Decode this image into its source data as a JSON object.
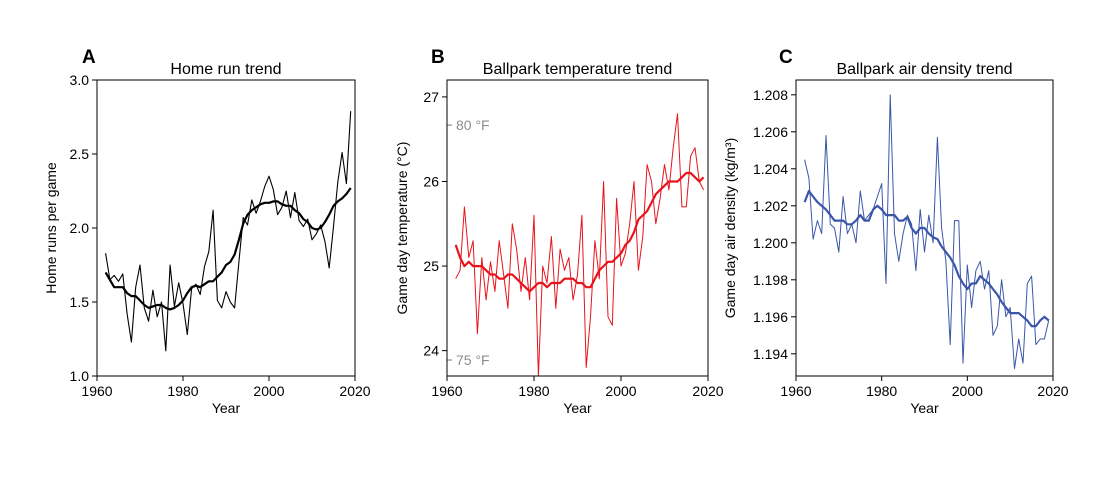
{
  "chart_data": [
    {
      "type": "line",
      "panel_letter": "A",
      "title": "Home run trend",
      "xlabel": "Year",
      "ylabel": "Home runs per game",
      "xlim": [
        1960,
        2020
      ],
      "ylim": [
        1.0,
        3.0
      ],
      "xticks": [
        "1960",
        "1980",
        "2000",
        "2020"
      ],
      "yticks": [
        "1.0",
        "1.5",
        "2.0",
        "2.5",
        "3.0"
      ],
      "ytick_values": [
        1.0,
        1.5,
        2.0,
        2.5,
        3.0
      ],
      "color": "#000000",
      "grid": false,
      "x": [
        1962,
        1963,
        1964,
        1965,
        1966,
        1967,
        1968,
        1969,
        1970,
        1971,
        1972,
        1973,
        1974,
        1975,
        1976,
        1977,
        1978,
        1979,
        1980,
        1981,
        1982,
        1983,
        1984,
        1985,
        1986,
        1987,
        1988,
        1989,
        1990,
        1991,
        1992,
        1993,
        1994,
        1995,
        1996,
        1997,
        1998,
        1999,
        2000,
        2001,
        2002,
        2003,
        2004,
        2005,
        2006,
        2007,
        2008,
        2009,
        2010,
        2011,
        2012,
        2013,
        2014,
        2015,
        2016,
        2017,
        2018,
        2019
      ],
      "series": [
        {
          "values": [
            1.83,
            1.65,
            1.68,
            1.64,
            1.69,
            1.42,
            1.23,
            1.6,
            1.75,
            1.46,
            1.37,
            1.58,
            1.4,
            1.5,
            1.17,
            1.75,
            1.47,
            1.63,
            1.49,
            1.28,
            1.59,
            1.62,
            1.55,
            1.74,
            1.84,
            2.12,
            1.51,
            1.46,
            1.57,
            1.5,
            1.46,
            1.77,
            2.07,
            2.02,
            2.19,
            2.1,
            2.18,
            2.28,
            2.35,
            2.26,
            2.09,
            2.14,
            2.25,
            2.07,
            2.24,
            2.05,
            2.01,
            2.06,
            1.92,
            1.96,
            2.02,
            1.91,
            1.73,
            2.01,
            2.31,
            2.51,
            2.3,
            2.79
          ]
        },
        {
          "values": [
            1.7,
            1.65,
            1.6,
            1.6,
            1.6,
            1.56,
            1.54,
            1.54,
            1.51,
            1.48,
            1.46,
            1.47,
            1.48,
            1.48,
            1.46,
            1.45,
            1.46,
            1.48,
            1.51,
            1.56,
            1.6,
            1.61,
            1.6,
            1.62,
            1.64,
            1.64,
            1.67,
            1.7,
            1.75,
            1.77,
            1.82,
            1.92,
            2.03,
            2.09,
            2.12,
            2.14,
            2.16,
            2.17,
            2.17,
            2.18,
            2.18,
            2.16,
            2.15,
            2.15,
            2.12,
            2.1,
            2.06,
            2.04,
            2.0,
            1.99,
            2.0,
            2.04,
            2.09,
            2.15,
            2.18,
            2.2,
            2.23,
            2.27
          ]
        }
      ]
    },
    {
      "type": "line",
      "panel_letter": "B",
      "title": "Ballpark temperature trend",
      "xlabel": "Year",
      "ylabel": "Game day temperature (°C)",
      "xlim": [
        1960,
        2020
      ],
      "ylim": [
        23.7,
        27.2
      ],
      "xticks": [
        "1960",
        "1980",
        "2000",
        "2020"
      ],
      "yticks": [
        "24",
        "25",
        "26",
        "27"
      ],
      "ytick_values": [
        24,
        25,
        26,
        27
      ],
      "annotations": [
        {
          "text": "80 °F",
          "y": 26.667
        },
        {
          "text": "75 °F",
          "y": 23.889
        }
      ],
      "annotation_color": "#8c8c8c",
      "color": "#e8141b",
      "grid": false,
      "x": [
        1962,
        1963,
        1964,
        1965,
        1966,
        1967,
        1968,
        1969,
        1970,
        1971,
        1972,
        1973,
        1974,
        1975,
        1976,
        1977,
        1978,
        1979,
        1980,
        1981,
        1982,
        1983,
        1984,
        1985,
        1986,
        1987,
        1988,
        1989,
        1990,
        1991,
        1992,
        1993,
        1994,
        1995,
        1996,
        1997,
        1998,
        1999,
        2000,
        2001,
        2002,
        2003,
        2004,
        2005,
        2006,
        2007,
        2008,
        2009,
        2010,
        2011,
        2012,
        2013,
        2014,
        2015,
        2016,
        2017,
        2018,
        2019
      ],
      "series": [
        {
          "values": [
            24.85,
            24.95,
            25.7,
            25.1,
            25.3,
            24.2,
            25.1,
            24.6,
            25.05,
            24.7,
            25.3,
            24.9,
            24.5,
            25.5,
            25.2,
            24.7,
            25.1,
            24.6,
            25.6,
            23.7,
            25.0,
            24.8,
            25.35,
            24.5,
            25.2,
            24.95,
            25.1,
            24.6,
            24.9,
            25.6,
            23.8,
            24.4,
            25.3,
            24.85,
            26.0,
            24.4,
            24.3,
            25.8,
            25.0,
            25.15,
            25.5,
            26.0,
            24.95,
            25.35,
            26.2,
            26.0,
            25.5,
            25.8,
            26.2,
            25.9,
            26.4,
            26.8,
            25.7,
            25.7,
            26.3,
            26.4,
            26.0,
            25.9
          ]
        },
        {
          "values": [
            25.25,
            25.1,
            25.0,
            25.05,
            25.0,
            25.0,
            25.0,
            24.95,
            24.9,
            24.9,
            24.85,
            24.85,
            24.9,
            24.9,
            24.85,
            24.8,
            24.75,
            24.7,
            24.75,
            24.8,
            24.8,
            24.75,
            24.8,
            24.8,
            24.8,
            24.85,
            24.85,
            24.85,
            24.8,
            24.8,
            24.75,
            24.75,
            24.85,
            24.95,
            25.0,
            25.05,
            25.05,
            25.1,
            25.15,
            25.25,
            25.3,
            25.4,
            25.55,
            25.6,
            25.65,
            25.75,
            25.85,
            25.9,
            25.95,
            26.0,
            26.0,
            26.0,
            26.05,
            26.1,
            26.1,
            26.05,
            26.0,
            26.05
          ]
        }
      ]
    },
    {
      "type": "line",
      "panel_letter": "C",
      "title": "Ballpark air density trend",
      "xlabel": "Year",
      "ylabel": "Game day air density (kg/m³)",
      "xlim": [
        1960,
        2020
      ],
      "ylim": [
        1.1928,
        1.2088
      ],
      "xticks": [
        "1960",
        "1980",
        "2000",
        "2020"
      ],
      "yticks": [
        "1.194",
        "1.196",
        "1.198",
        "1.200",
        "1.202",
        "1.204",
        "1.206",
        "1.208"
      ],
      "ytick_values": [
        1.194,
        1.196,
        1.198,
        1.2,
        1.202,
        1.204,
        1.206,
        1.208
      ],
      "color": "#3b56a8",
      "grid": false,
      "x": [
        1962,
        1963,
        1964,
        1965,
        1966,
        1967,
        1968,
        1969,
        1970,
        1971,
        1972,
        1973,
        1974,
        1975,
        1976,
        1977,
        1978,
        1979,
        1980,
        1981,
        1982,
        1983,
        1984,
        1985,
        1986,
        1987,
        1988,
        1989,
        1990,
        1991,
        1992,
        1993,
        1994,
        1995,
        1996,
        1997,
        1998,
        1999,
        2000,
        2001,
        2002,
        2003,
        2004,
        2005,
        2006,
        2007,
        2008,
        2009,
        2010,
        2011,
        2012,
        2013,
        2014,
        2015,
        2016,
        2017,
        2018,
        2019
      ],
      "series": [
        {
          "values": [
            1.2045,
            1.2035,
            1.2002,
            1.2012,
            1.2005,
            1.2058,
            1.201,
            1.2008,
            1.1995,
            1.2025,
            1.2005,
            1.201,
            1.2,
            1.2028,
            1.2012,
            1.2015,
            1.2018,
            1.2025,
            1.2032,
            1.1978,
            1.208,
            1.2005,
            1.199,
            1.2005,
            1.2015,
            1.201,
            1.1985,
            1.2018,
            1.1995,
            1.2015,
            1.2,
            1.2057,
            1.2008,
            1.199,
            1.1945,
            1.2012,
            1.2012,
            1.1935,
            1.1988,
            1.1965,
            1.1985,
            1.199,
            1.1975,
            1.1985,
            1.195,
            1.1955,
            1.198,
            1.196,
            1.1965,
            1.1932,
            1.1948,
            1.1935,
            1.1978,
            1.1982,
            1.1945,
            1.1948,
            1.1948,
            1.1958
          ]
        },
        {
          "values": [
            1.2022,
            1.2028,
            1.2025,
            1.2022,
            1.202,
            1.2018,
            1.2015,
            1.2012,
            1.2012,
            1.2012,
            1.201,
            1.201,
            1.2012,
            1.2015,
            1.2012,
            1.2012,
            1.2018,
            1.202,
            1.2018,
            1.2015,
            1.2015,
            1.2015,
            1.2012,
            1.2012,
            1.2014,
            1.2008,
            1.2005,
            1.2008,
            1.2008,
            1.2005,
            1.2003,
            1.2002,
            1.1998,
            1.1995,
            1.1992,
            1.1988,
            1.1982,
            1.1978,
            1.1975,
            1.1978,
            1.1978,
            1.1982,
            1.198,
            1.1978,
            1.1975,
            1.1972,
            1.1968,
            1.1965,
            1.1962,
            1.1962,
            1.1962,
            1.196,
            1.1958,
            1.1955,
            1.1955,
            1.1958,
            1.196,
            1.1958
          ]
        }
      ]
    }
  ]
}
